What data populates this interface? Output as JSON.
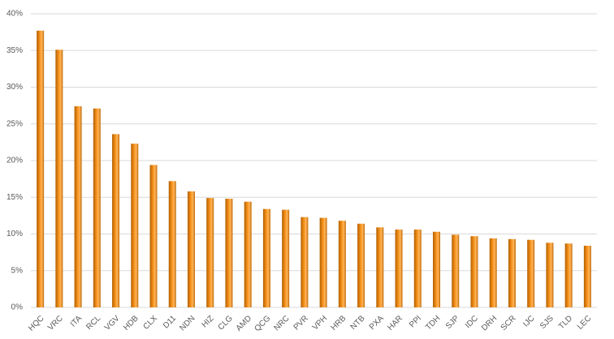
{
  "chart_data": {
    "type": "bar",
    "categories": [
      "HQC",
      "VRC",
      "ITA",
      "RCL",
      "VGV",
      "HDB",
      "CLX",
      "D11",
      "NDN",
      "HIZ",
      "CLG",
      "AMD",
      "QCG",
      "NRC",
      "PVR",
      "VPH",
      "HRB",
      "NTB",
      "PXA",
      "HAR",
      "PPI",
      "TDH",
      "SJP",
      "IDC",
      "DRH",
      "SCR",
      "IJC",
      "SJS",
      "TLD",
      "LEC"
    ],
    "values": [
      37.7,
      35.1,
      27.4,
      27.1,
      23.6,
      22.3,
      19.4,
      17.2,
      15.8,
      14.9,
      14.8,
      14.4,
      13.4,
      13.3,
      12.3,
      12.2,
      11.8,
      11.4,
      10.9,
      10.6,
      10.6,
      10.3,
      9.9,
      9.7,
      9.4,
      9.3,
      9.2,
      8.8,
      8.7,
      8.4
    ],
    "color": "#f7941d",
    "ylim": [
      0,
      40
    ],
    "yticks": [
      {
        "value": 0,
        "label": "0%"
      },
      {
        "value": 5,
        "label": "5%"
      },
      {
        "value": 10,
        "label": "10%"
      },
      {
        "value": 15,
        "label": "15%"
      },
      {
        "value": 20,
        "label": "20%"
      },
      {
        "value": 25,
        "label": "25%"
      },
      {
        "value": 30,
        "label": "30%"
      },
      {
        "value": 35,
        "label": "35%"
      },
      {
        "value": 40,
        "label": "40%"
      }
    ],
    "grid": true
  }
}
